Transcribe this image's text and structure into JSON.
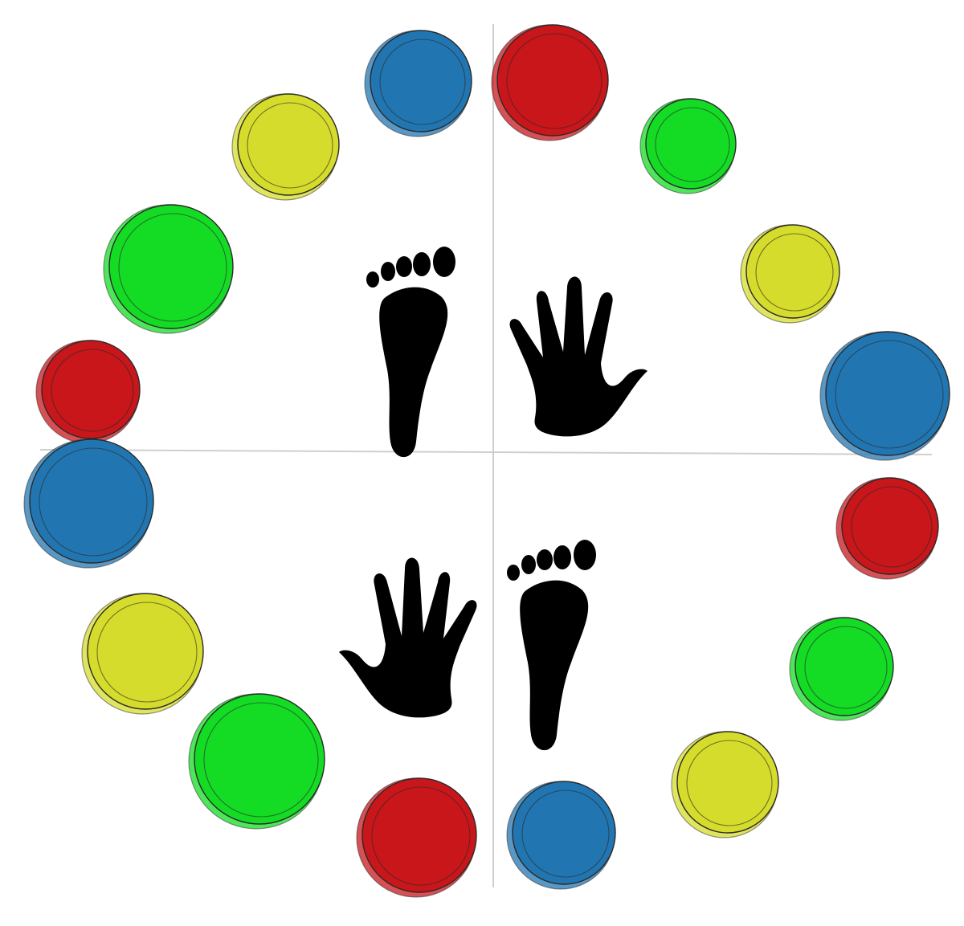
{
  "colors": {
    "red": "#c8161b",
    "blue": "#2176b2",
    "yellow": "#d6dc2b",
    "green": "#14dc24",
    "divider": "#cfcfcf",
    "outline": "#2a2a2a",
    "print": "#000000"
  },
  "quadrants": [
    {
      "id": "top-left",
      "limb": "left-foot",
      "icon": "foot-icon",
      "spots": [
        "blue",
        "yellow",
        "green",
        "red"
      ]
    },
    {
      "id": "top-right",
      "limb": "right-hand",
      "icon": "hand-icon",
      "spots": [
        "red",
        "green",
        "yellow",
        "blue"
      ]
    },
    {
      "id": "bottom-right",
      "limb": "right-foot",
      "icon": "foot-icon",
      "spots": [
        "red",
        "green",
        "yellow",
        "blue"
      ]
    },
    {
      "id": "bottom-left",
      "limb": "left-hand",
      "icon": "hand-icon",
      "spots": [
        "blue",
        "yellow",
        "green",
        "red"
      ]
    }
  ]
}
